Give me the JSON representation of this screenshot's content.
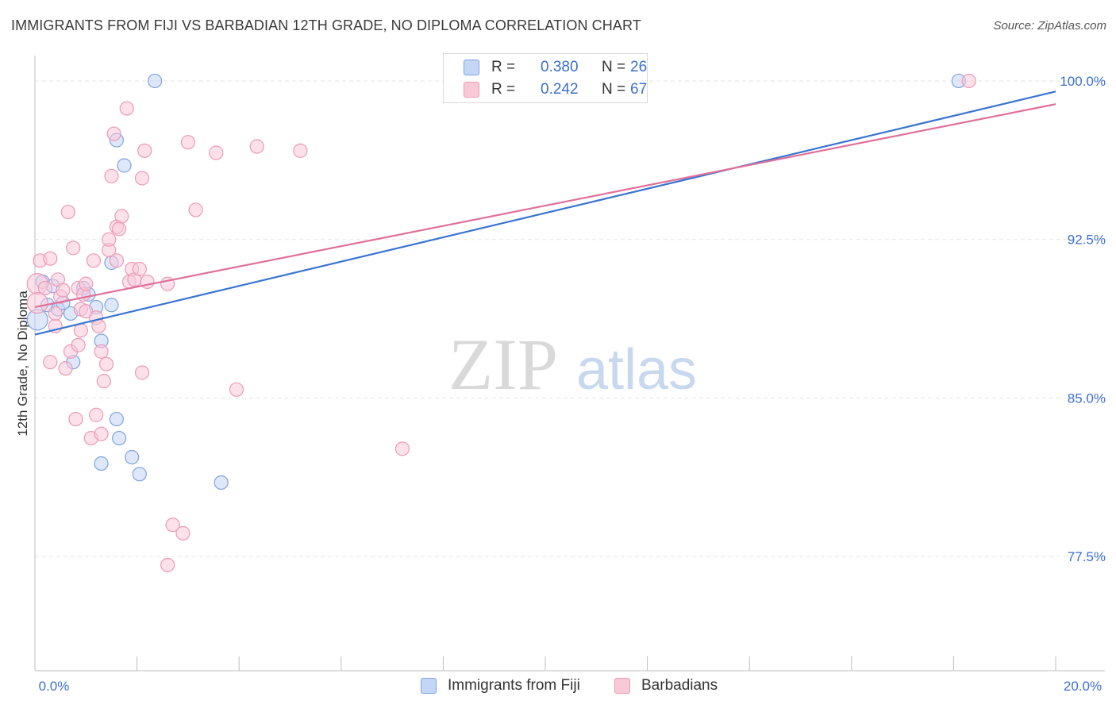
{
  "header": {
    "title": "IMMIGRANTS FROM FIJI VS BARBADIAN 12TH GRADE, NO DIPLOMA CORRELATION CHART",
    "source": "Source: ZipAtlas.com"
  },
  "watermark": {
    "zip": "ZIP",
    "atlas": "atlas"
  },
  "legend_top": {
    "r_label": "R =",
    "n_label": "N =",
    "series": [
      {
        "r_value": "0.380",
        "n_value": "26"
      },
      {
        "r_value": "0.242",
        "n_value": "67"
      }
    ]
  },
  "legend_bottom": [
    {
      "label": "Immigrants from Fiji"
    },
    {
      "label": "Barbadians"
    }
  ],
  "colors": {
    "fiji_fill": "#c3d6f5",
    "fiji_stroke": "#7fa4e0",
    "fiji_line": "#3a74d0",
    "barb_fill": "#f9c9d8",
    "barb_stroke": "#ec9ab5",
    "barb_line": "#e0709a",
    "tick_text": "#3b6fd1",
    "grid": "#e6e6e6"
  },
  "chart_data": {
    "type": "scatter",
    "title": "IMMIGRANTS FROM FIJI VS BARBADIAN 12TH GRADE, NO DIPLOMA CORRELATION CHART",
    "xlabel": "",
    "ylabel": "12th Grade, No Diploma",
    "xlim": [
      0,
      20
    ],
    "ylim": [
      72.1,
      101.2
    ],
    "x_tick_labels": [
      {
        "value": 0,
        "label": "0.0%"
      },
      {
        "value": 20,
        "label": "20.0%"
      }
    ],
    "y_tick_labels": [
      {
        "value": 100,
        "label": "100.0%"
      },
      {
        "value": 92.5,
        "label": "92.5%"
      },
      {
        "value": 85,
        "label": "85.0%"
      },
      {
        "value": 77.5,
        "label": "77.5%"
      }
    ],
    "series": [
      {
        "name": "Immigrants from Fiji",
        "R": 0.38,
        "N": 26,
        "trend": {
          "x": [
            0,
            20
          ],
          "y": [
            88.0,
            99.5
          ]
        },
        "points": [
          {
            "x": 0.05,
            "y": 88.7,
            "big": true
          },
          {
            "x": 0.15,
            "y": 90.5
          },
          {
            "x": 0.25,
            "y": 89.4
          },
          {
            "x": 0.35,
            "y": 90.3
          },
          {
            "x": 0.45,
            "y": 89.2
          },
          {
            "x": 0.55,
            "y": 89.5
          },
          {
            "x": 0.7,
            "y": 89.0
          },
          {
            "x": 0.75,
            "y": 86.7
          },
          {
            "x": 0.95,
            "y": 90.2
          },
          {
            "x": 1.05,
            "y": 89.9
          },
          {
            "x": 1.2,
            "y": 89.3
          },
          {
            "x": 1.3,
            "y": 81.9
          },
          {
            "x": 1.3,
            "y": 87.7
          },
          {
            "x": 1.5,
            "y": 91.4
          },
          {
            "x": 1.5,
            "y": 89.4
          },
          {
            "x": 1.6,
            "y": 97.2
          },
          {
            "x": 1.6,
            "y": 84.0
          },
          {
            "x": 1.65,
            "y": 83.1
          },
          {
            "x": 1.75,
            "y": 96.0
          },
          {
            "x": 1.9,
            "y": 82.2
          },
          {
            "x": 2.05,
            "y": 81.4
          },
          {
            "x": 2.35,
            "y": 100.0
          },
          {
            "x": 3.65,
            "y": 81.0
          },
          {
            "x": 18.1,
            "y": 100.0
          }
        ]
      },
      {
        "name": "Barbadians",
        "R": 0.242,
        "N": 67,
        "trend": {
          "x": [
            0,
            20
          ],
          "y": [
            89.3,
            98.9
          ]
        },
        "points": [
          {
            "x": 0.05,
            "y": 90.4,
            "big": true
          },
          {
            "x": 0.05,
            "y": 89.5,
            "big": true
          },
          {
            "x": 0.1,
            "y": 91.5
          },
          {
            "x": 0.2,
            "y": 90.2
          },
          {
            "x": 0.3,
            "y": 91.6
          },
          {
            "x": 0.3,
            "y": 86.7
          },
          {
            "x": 0.4,
            "y": 88.4
          },
          {
            "x": 0.4,
            "y": 89.0
          },
          {
            "x": 0.45,
            "y": 90.6
          },
          {
            "x": 0.5,
            "y": 89.8
          },
          {
            "x": 0.55,
            "y": 90.1
          },
          {
            "x": 0.6,
            "y": 86.4
          },
          {
            "x": 0.65,
            "y": 93.8
          },
          {
            "x": 0.7,
            "y": 87.2
          },
          {
            "x": 0.75,
            "y": 92.1
          },
          {
            "x": 0.8,
            "y": 84.0
          },
          {
            "x": 0.85,
            "y": 90.2
          },
          {
            "x": 0.85,
            "y": 87.5
          },
          {
            "x": 0.9,
            "y": 89.2
          },
          {
            "x": 0.9,
            "y": 88.2
          },
          {
            "x": 0.95,
            "y": 89.9
          },
          {
            "x": 1.0,
            "y": 89.1
          },
          {
            "x": 1.0,
            "y": 90.4
          },
          {
            "x": 1.1,
            "y": 83.1
          },
          {
            "x": 1.15,
            "y": 91.5
          },
          {
            "x": 1.2,
            "y": 84.2
          },
          {
            "x": 1.2,
            "y": 88.8
          },
          {
            "x": 1.25,
            "y": 88.4
          },
          {
            "x": 1.3,
            "y": 83.3
          },
          {
            "x": 1.3,
            "y": 87.2
          },
          {
            "x": 1.35,
            "y": 85.8
          },
          {
            "x": 1.4,
            "y": 86.6
          },
          {
            "x": 1.45,
            "y": 92.0
          },
          {
            "x": 1.45,
            "y": 92.5
          },
          {
            "x": 1.5,
            "y": 95.5
          },
          {
            "x": 1.55,
            "y": 97.5
          },
          {
            "x": 1.6,
            "y": 91.5
          },
          {
            "x": 1.6,
            "y": 93.1
          },
          {
            "x": 1.65,
            "y": 93.0
          },
          {
            "x": 1.7,
            "y": 93.6
          },
          {
            "x": 1.8,
            "y": 98.7
          },
          {
            "x": 1.85,
            "y": 90.5
          },
          {
            "x": 1.9,
            "y": 91.1
          },
          {
            "x": 1.95,
            "y": 90.6
          },
          {
            "x": 2.05,
            "y": 91.1
          },
          {
            "x": 2.1,
            "y": 95.4
          },
          {
            "x": 2.1,
            "y": 86.2
          },
          {
            "x": 2.15,
            "y": 96.7
          },
          {
            "x": 2.2,
            "y": 90.5
          },
          {
            "x": 2.6,
            "y": 90.4
          },
          {
            "x": 2.6,
            "y": 77.1
          },
          {
            "x": 2.7,
            "y": 79.0
          },
          {
            "x": 2.9,
            "y": 78.6
          },
          {
            "x": 3.0,
            "y": 97.1
          },
          {
            "x": 3.15,
            "y": 93.9
          },
          {
            "x": 3.55,
            "y": 96.6
          },
          {
            "x": 3.95,
            "y": 85.4
          },
          {
            "x": 4.35,
            "y": 96.9
          },
          {
            "x": 5.2,
            "y": 96.7
          },
          {
            "x": 7.2,
            "y": 82.6
          },
          {
            "x": 18.3,
            "y": 100.0
          }
        ]
      }
    ]
  }
}
